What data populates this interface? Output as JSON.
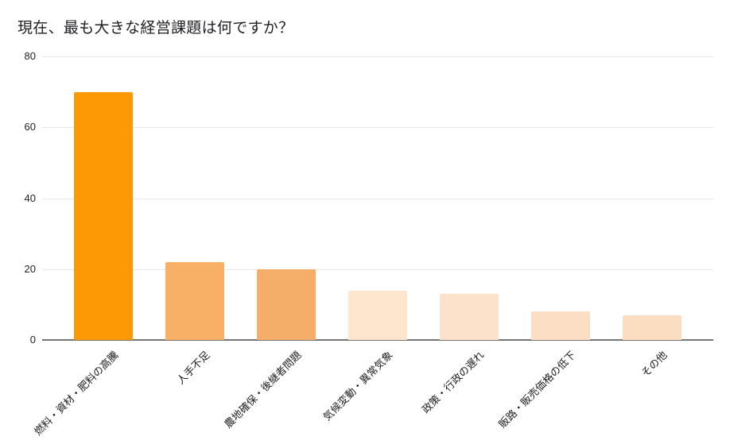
{
  "title": "現在、最も大きな経営課題は何ですか？",
  "chart_data": {
    "type": "bar",
    "title": "現在、最も大きな経営課題は何ですか？",
    "categories": [
      "燃料・資材・肥料の高騰",
      "人手不足",
      "農地確保・後継者問題",
      "気候変動・異常気象",
      "政策・行政の遅れ",
      "販路・販売価格の低下",
      "その他"
    ],
    "values": [
      70,
      22,
      20,
      14,
      13,
      8,
      7
    ],
    "bar_colors": [
      "#FC9905",
      "#F8B067",
      "#F5AE69",
      "#FDE5CE",
      "#FCE2CA",
      "#FBDEC4",
      "#FBDDC2"
    ],
    "xlabel": "",
    "ylabel": "",
    "ylim": [
      0,
      80
    ],
    "yticks": [
      0,
      20,
      40,
      60,
      80
    ],
    "grid": true,
    "legend": "none",
    "x_tick_rotation_deg": 45
  },
  "colors": {
    "background": "#FFFFFF",
    "gridline": "#E6E6E6",
    "axis_line": "#757575",
    "text": "#212121",
    "title_text": "#202124"
  }
}
